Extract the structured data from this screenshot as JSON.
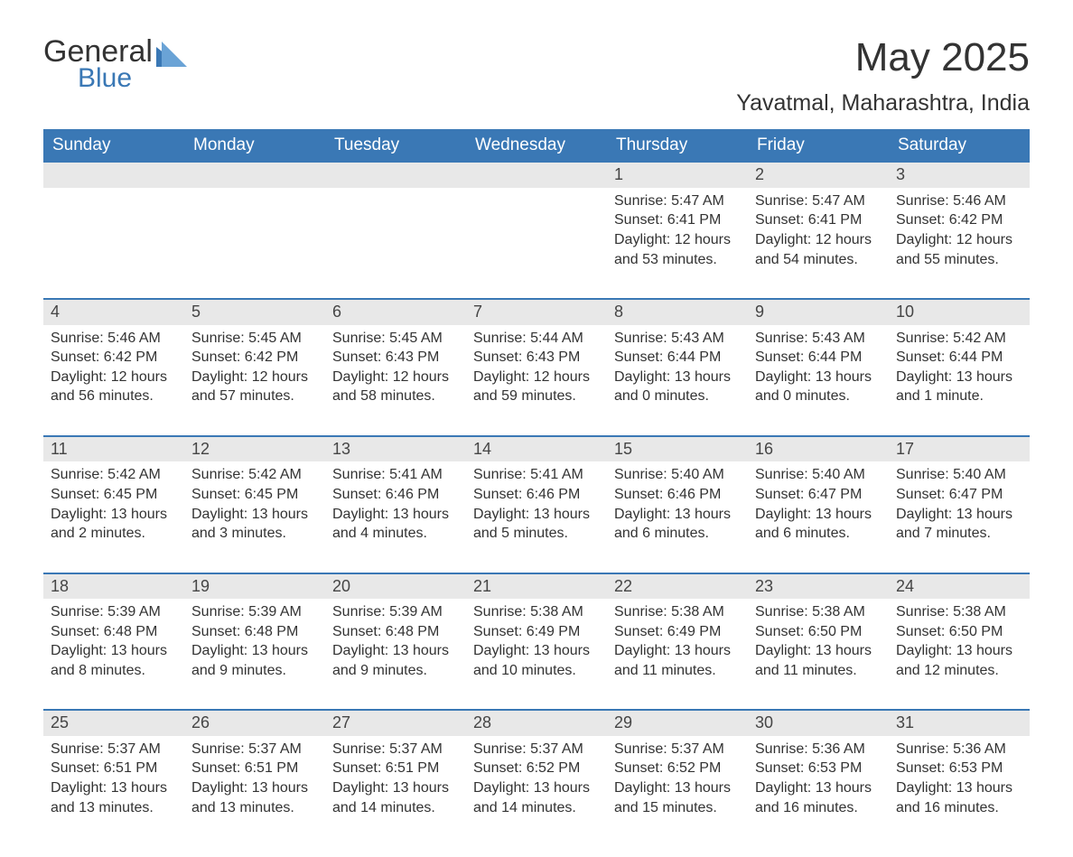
{
  "logo": {
    "word1": "General",
    "word2": "Blue"
  },
  "title": "May 2025",
  "location": "Yavatmal, Maharashtra, India",
  "colors": {
    "accent": "#3a78b5",
    "header_text": "#ffffff",
    "daynum_bg": "#e8e8e8",
    "text": "#333333",
    "bg": "#ffffff"
  },
  "days_of_week": [
    "Sunday",
    "Monday",
    "Tuesday",
    "Wednesday",
    "Thursday",
    "Friday",
    "Saturday"
  ],
  "weeks": [
    [
      null,
      null,
      null,
      null,
      {
        "n": "1",
        "sr": "5:47 AM",
        "ss": "6:41 PM",
        "dl": "12 hours and 53 minutes."
      },
      {
        "n": "2",
        "sr": "5:47 AM",
        "ss": "6:41 PM",
        "dl": "12 hours and 54 minutes."
      },
      {
        "n": "3",
        "sr": "5:46 AM",
        "ss": "6:42 PM",
        "dl": "12 hours and 55 minutes."
      }
    ],
    [
      {
        "n": "4",
        "sr": "5:46 AM",
        "ss": "6:42 PM",
        "dl": "12 hours and 56 minutes."
      },
      {
        "n": "5",
        "sr": "5:45 AM",
        "ss": "6:42 PM",
        "dl": "12 hours and 57 minutes."
      },
      {
        "n": "6",
        "sr": "5:45 AM",
        "ss": "6:43 PM",
        "dl": "12 hours and 58 minutes."
      },
      {
        "n": "7",
        "sr": "5:44 AM",
        "ss": "6:43 PM",
        "dl": "12 hours and 59 minutes."
      },
      {
        "n": "8",
        "sr": "5:43 AM",
        "ss": "6:44 PM",
        "dl": "13 hours and 0 minutes."
      },
      {
        "n": "9",
        "sr": "5:43 AM",
        "ss": "6:44 PM",
        "dl": "13 hours and 0 minutes."
      },
      {
        "n": "10",
        "sr": "5:42 AM",
        "ss": "6:44 PM",
        "dl": "13 hours and 1 minute."
      }
    ],
    [
      {
        "n": "11",
        "sr": "5:42 AM",
        "ss": "6:45 PM",
        "dl": "13 hours and 2 minutes."
      },
      {
        "n": "12",
        "sr": "5:42 AM",
        "ss": "6:45 PM",
        "dl": "13 hours and 3 minutes."
      },
      {
        "n": "13",
        "sr": "5:41 AM",
        "ss": "6:46 PM",
        "dl": "13 hours and 4 minutes."
      },
      {
        "n": "14",
        "sr": "5:41 AM",
        "ss": "6:46 PM",
        "dl": "13 hours and 5 minutes."
      },
      {
        "n": "15",
        "sr": "5:40 AM",
        "ss": "6:46 PM",
        "dl": "13 hours and 6 minutes."
      },
      {
        "n": "16",
        "sr": "5:40 AM",
        "ss": "6:47 PM",
        "dl": "13 hours and 6 minutes."
      },
      {
        "n": "17",
        "sr": "5:40 AM",
        "ss": "6:47 PM",
        "dl": "13 hours and 7 minutes."
      }
    ],
    [
      {
        "n": "18",
        "sr": "5:39 AM",
        "ss": "6:48 PM",
        "dl": "13 hours and 8 minutes."
      },
      {
        "n": "19",
        "sr": "5:39 AM",
        "ss": "6:48 PM",
        "dl": "13 hours and 9 minutes."
      },
      {
        "n": "20",
        "sr": "5:39 AM",
        "ss": "6:48 PM",
        "dl": "13 hours and 9 minutes."
      },
      {
        "n": "21",
        "sr": "5:38 AM",
        "ss": "6:49 PM",
        "dl": "13 hours and 10 minutes."
      },
      {
        "n": "22",
        "sr": "5:38 AM",
        "ss": "6:49 PM",
        "dl": "13 hours and 11 minutes."
      },
      {
        "n": "23",
        "sr": "5:38 AM",
        "ss": "6:50 PM",
        "dl": "13 hours and 11 minutes."
      },
      {
        "n": "24",
        "sr": "5:38 AM",
        "ss": "6:50 PM",
        "dl": "13 hours and 12 minutes."
      }
    ],
    [
      {
        "n": "25",
        "sr": "5:37 AM",
        "ss": "6:51 PM",
        "dl": "13 hours and 13 minutes."
      },
      {
        "n": "26",
        "sr": "5:37 AM",
        "ss": "6:51 PM",
        "dl": "13 hours and 13 minutes."
      },
      {
        "n": "27",
        "sr": "5:37 AM",
        "ss": "6:51 PM",
        "dl": "13 hours and 14 minutes."
      },
      {
        "n": "28",
        "sr": "5:37 AM",
        "ss": "6:52 PM",
        "dl": "13 hours and 14 minutes."
      },
      {
        "n": "29",
        "sr": "5:37 AM",
        "ss": "6:52 PM",
        "dl": "13 hours and 15 minutes."
      },
      {
        "n": "30",
        "sr": "5:36 AM",
        "ss": "6:53 PM",
        "dl": "13 hours and 16 minutes."
      },
      {
        "n": "31",
        "sr": "5:36 AM",
        "ss": "6:53 PM",
        "dl": "13 hours and 16 minutes."
      }
    ]
  ],
  "labels": {
    "sunrise": "Sunrise:",
    "sunset": "Sunset:",
    "daylight": "Daylight:"
  }
}
